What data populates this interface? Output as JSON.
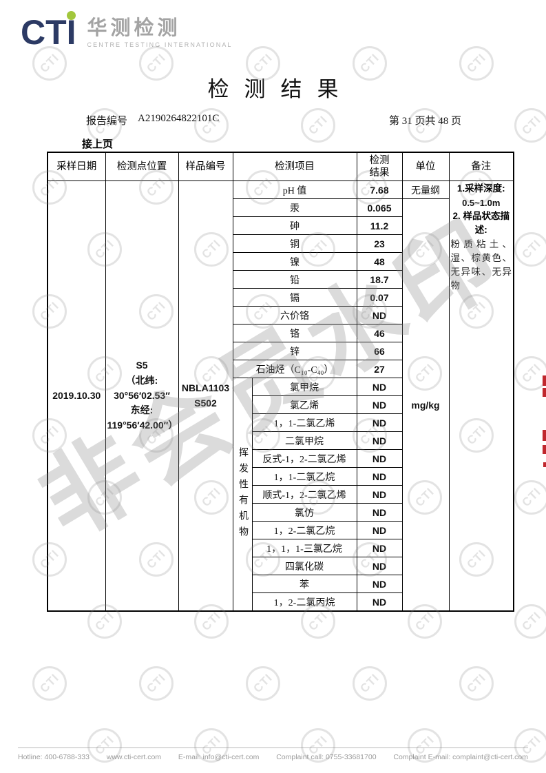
{
  "logo": {
    "brand": "CTI",
    "cn_name": "华测检测",
    "en_name": "CENTRE TESTING INTERNATIONAL",
    "brand_color": "#2c3a64",
    "dot_color": "#a2c73c"
  },
  "header": {
    "title": "检测结果",
    "report_no_label": "报告编号",
    "report_no": "A2190264822101C",
    "page_info": "第 31 页共 48 页",
    "continued": "接上页"
  },
  "table": {
    "headers": {
      "sample_date": "采样日期",
      "location": "检测点位置",
      "sample_id": "样品编号",
      "item": "检测项目",
      "result": "检测\n结果",
      "unit": "单位",
      "remark": "备注"
    },
    "sample_date": "2019.10.30",
    "location": "S5\n（北纬:\n30°56′02.53″\n东经:\n119°56′42.00″）",
    "sample_id": "NBLA1103\nS502",
    "voc_group_label": "挥发性有机物",
    "units": {
      "dimensionless": "无量纲",
      "mg_per_kg": "mg/kg"
    },
    "rows": [
      {
        "item": "pH 值",
        "result": "7.68"
      },
      {
        "item": "汞",
        "result": "0.065"
      },
      {
        "item": "砷",
        "result": "11.2"
      },
      {
        "item": "铜",
        "result": "23"
      },
      {
        "item": "镍",
        "result": "48"
      },
      {
        "item": "铅",
        "result": "18.7"
      },
      {
        "item": "镉",
        "result": "0.07"
      },
      {
        "item": "六价铬",
        "result": "ND"
      },
      {
        "item": "铬",
        "result": "46"
      },
      {
        "item": "锌",
        "result": "66"
      },
      {
        "item": "石油烃（C₁₀-C₄₀）",
        "result": "27"
      },
      {
        "item": "氯甲烷",
        "result": "ND"
      },
      {
        "item": "氯乙烯",
        "result": "ND"
      },
      {
        "item": "1，1-二氯乙烯",
        "result": "ND"
      },
      {
        "item": "二氯甲烷",
        "result": "ND"
      },
      {
        "item": "反式-1，2-二氯乙烯",
        "result": "ND"
      },
      {
        "item": "1，1-二氯乙烷",
        "result": "ND"
      },
      {
        "item": "顺式-1，2-二氯乙烯",
        "result": "ND"
      },
      {
        "item": "氯仿",
        "result": "ND"
      },
      {
        "item": "1，2-二氯乙烷",
        "result": "ND"
      },
      {
        "item": "1，1，1-三氯乙烷",
        "result": "ND"
      },
      {
        "item": "四氯化碳",
        "result": "ND"
      },
      {
        "item": "苯",
        "result": "ND"
      },
      {
        "item": "1，2-二氯丙烷",
        "result": "ND"
      }
    ],
    "remark": {
      "line1": "1.采样深度:",
      "line2": "0.5~1.0m",
      "line3": "2. 样品状态描述:",
      "line4": "粉质粘土、湿、棕黄色、无异味、无异物"
    }
  },
  "watermark": {
    "stamp_text": "CTI",
    "diagonal_text": "非会员水印"
  },
  "footer": {
    "items": [
      "Hotline: 400-6788-333",
      "www.cti-cert.com",
      "E-mail: info@cti-cert.com",
      "Complaint call: 0755-33681700",
      "Complaint E-mail: complaint@cti-cert.com"
    ]
  }
}
